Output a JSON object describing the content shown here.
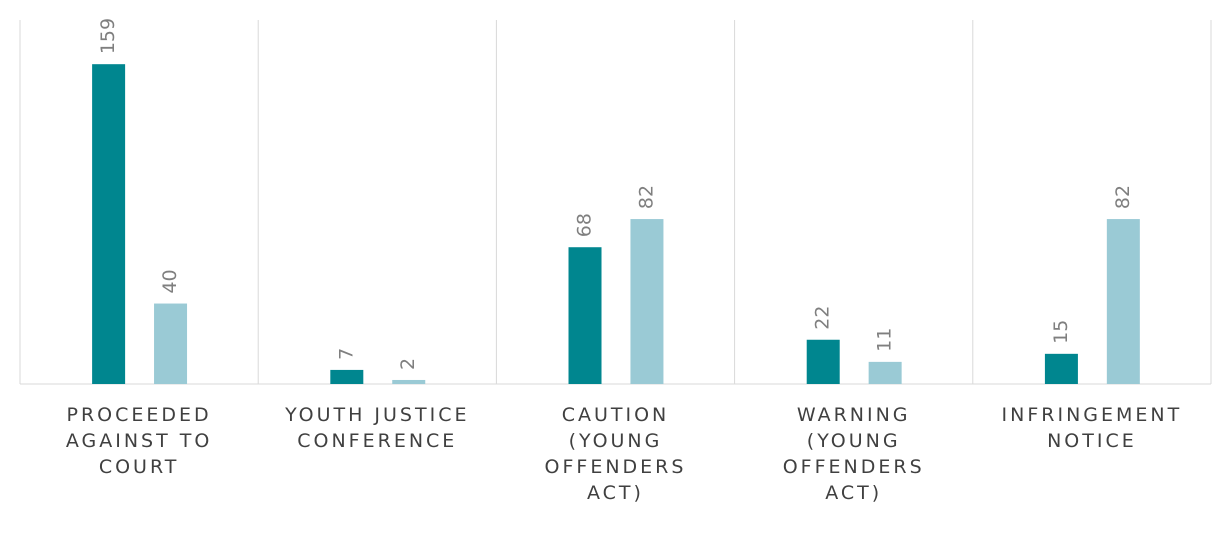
{
  "chart_data": {
    "type": "bar",
    "categories": [
      "PROCEEDED AGAINST TO COURT",
      "YOUTH JUSTICE CONFERENCE",
      "CAUTION (YOUNG OFFENDERS ACT)",
      "WARNING (YOUNG OFFENDERS ACT)",
      "INFRINGEMENT NOTICE"
    ],
    "series": [
      {
        "color": "#00868f",
        "values": [
          159,
          7,
          68,
          22,
          15
        ]
      },
      {
        "color": "#9acad5",
        "values": [
          40,
          2,
          82,
          11,
          82
        ]
      }
    ],
    "ylim": [
      0,
      175
    ]
  }
}
